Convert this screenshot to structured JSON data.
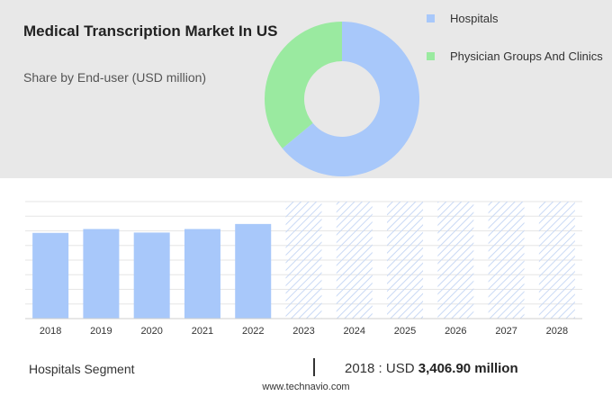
{
  "header": {
    "title": "Medical Transcription Market In US",
    "subtitle": "Share by End-user (USD million)"
  },
  "legend": [
    {
      "label": "Hospitals",
      "color": "#a8c8fa"
    },
    {
      "label": "Physician Groups And Clinics",
      "color": "#9aeaa0"
    }
  ],
  "chart_data": [
    {
      "type": "pie",
      "style": "donut",
      "categories": [
        "Hospitals",
        "Physician Groups And Clinics"
      ],
      "values": [
        64,
        36
      ],
      "colors": [
        "#a8c8fa",
        "#9aeaa0"
      ]
    },
    {
      "type": "bar",
      "categories": [
        "2018",
        "2019",
        "2020",
        "2021",
        "2022",
        "2023",
        "2024",
        "2025",
        "2026",
        "2027",
        "2028"
      ],
      "values": [
        3406.9,
        3560,
        3420,
        3560,
        3760,
        null,
        null,
        null,
        null,
        null,
        null
      ],
      "forecast_from": "2023",
      "ylim": [
        0,
        4650
      ],
      "grid": true,
      "bar_color": "#a8c8fa",
      "forecast_color": "#c9d9f5"
    }
  ],
  "footer": {
    "segment": "Hospitals Segment",
    "year": "2018",
    "currency": "USD",
    "value": "3,406.90 million",
    "site": "www.technavio.com"
  }
}
